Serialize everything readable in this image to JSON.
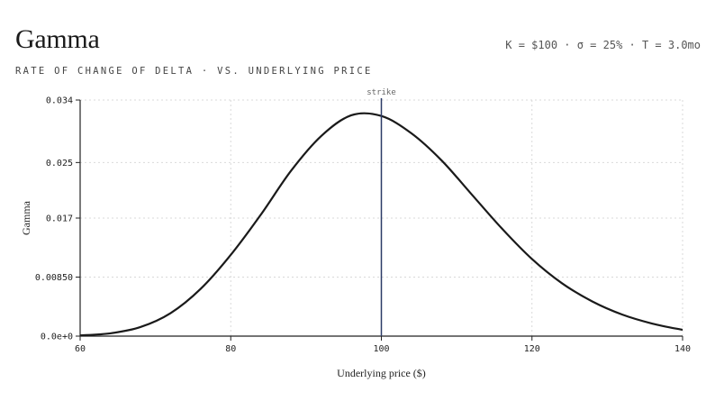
{
  "header": {
    "title": "Gamma",
    "params": "K = $100 · σ = 25% · T = 3.0mo",
    "subtitle": "RATE OF CHANGE OF DELTA · VS. UNDERLYING PRICE"
  },
  "colors": {
    "curve": "#1a1a1a",
    "marker": "#2b3a67",
    "grid": "#d9d9d9",
    "axis": "#222222"
  },
  "chart_data": {
    "type": "line",
    "title": "Gamma",
    "subtitle": "RATE OF CHANGE OF DELTA · VS. UNDERLYING PRICE",
    "xlabel": "Underlying price ($)",
    "ylabel": "Gamma",
    "xlim": [
      60,
      140
    ],
    "ylim": [
      0,
      0.034
    ],
    "x_ticks": [
      60,
      80,
      100,
      120,
      140
    ],
    "x_tick_labels": [
      "60",
      "80",
      "100",
      "120",
      "140"
    ],
    "y_ticks": [
      0,
      0.0085,
      0.017,
      0.025,
      0.034
    ],
    "y_tick_labels": [
      "0.0e+0",
      "0.00850",
      "0.017",
      "0.025",
      "0.034"
    ],
    "grid": true,
    "strike_marker": {
      "x": 100,
      "label": "strike"
    },
    "series": [
      {
        "x": [
          60,
          64,
          68,
          72,
          76,
          80,
          84,
          88,
          92,
          96,
          100,
          104,
          108,
          112,
          116,
          120,
          124,
          128,
          132,
          136,
          140
        ],
        "values": [
          0.0001,
          0.0004,
          0.0013,
          0.0033,
          0.0068,
          0.0117,
          0.0175,
          0.0238,
          0.0288,
          0.0318,
          0.0317,
          0.0292,
          0.0253,
          0.0204,
          0.0155,
          0.0111,
          0.0076,
          0.005,
          0.0031,
          0.0018,
          0.0009
        ]
      }
    ]
  }
}
